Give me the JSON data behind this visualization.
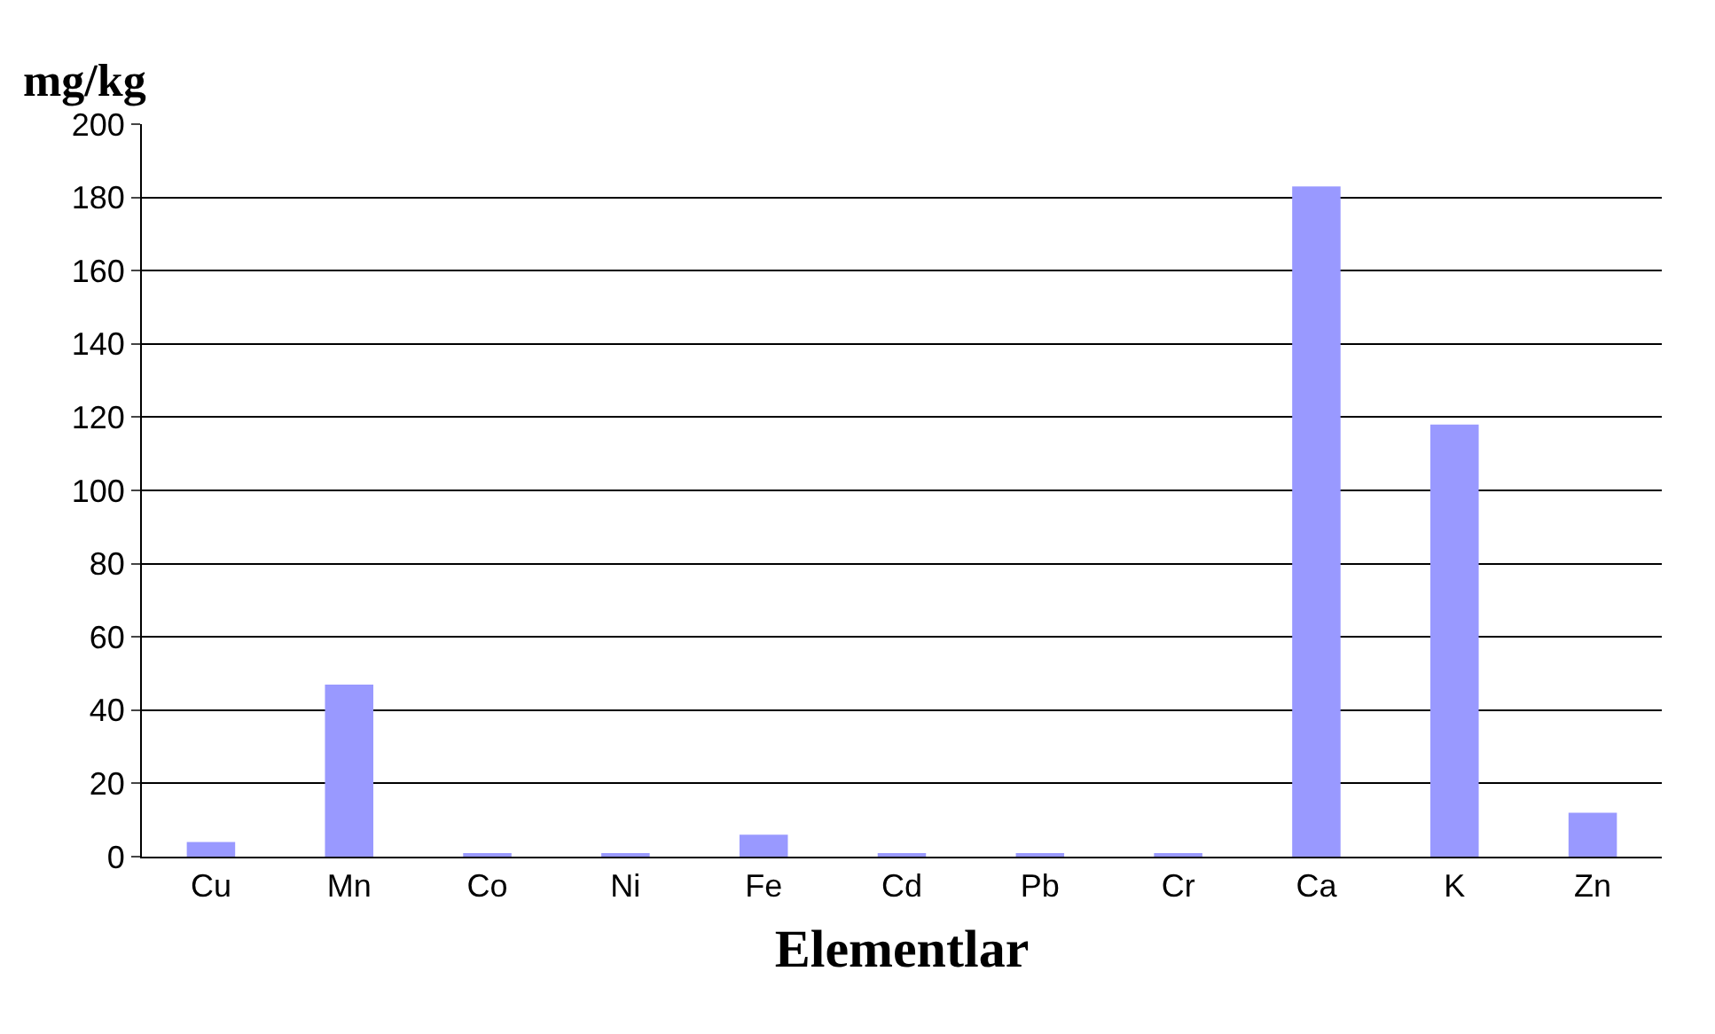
{
  "chart_data": {
    "type": "bar",
    "ylabel": "mg/kg",
    "xlabel": "Elementlar",
    "categories": [
      "Cu",
      "Mn",
      "Co",
      "Ni",
      "Fe",
      "Cd",
      "Pb",
      "Cr",
      "Ca",
      "K",
      "Zn"
    ],
    "values": [
      4,
      47,
      1,
      0.5,
      6,
      0.5,
      0.5,
      1,
      183,
      118,
      12
    ],
    "color": "#9999ff",
    "ylim": [
      0,
      200
    ],
    "yticks": [
      0,
      20,
      40,
      60,
      80,
      100,
      120,
      140,
      160,
      180,
      200
    ],
    "grid": "y"
  }
}
